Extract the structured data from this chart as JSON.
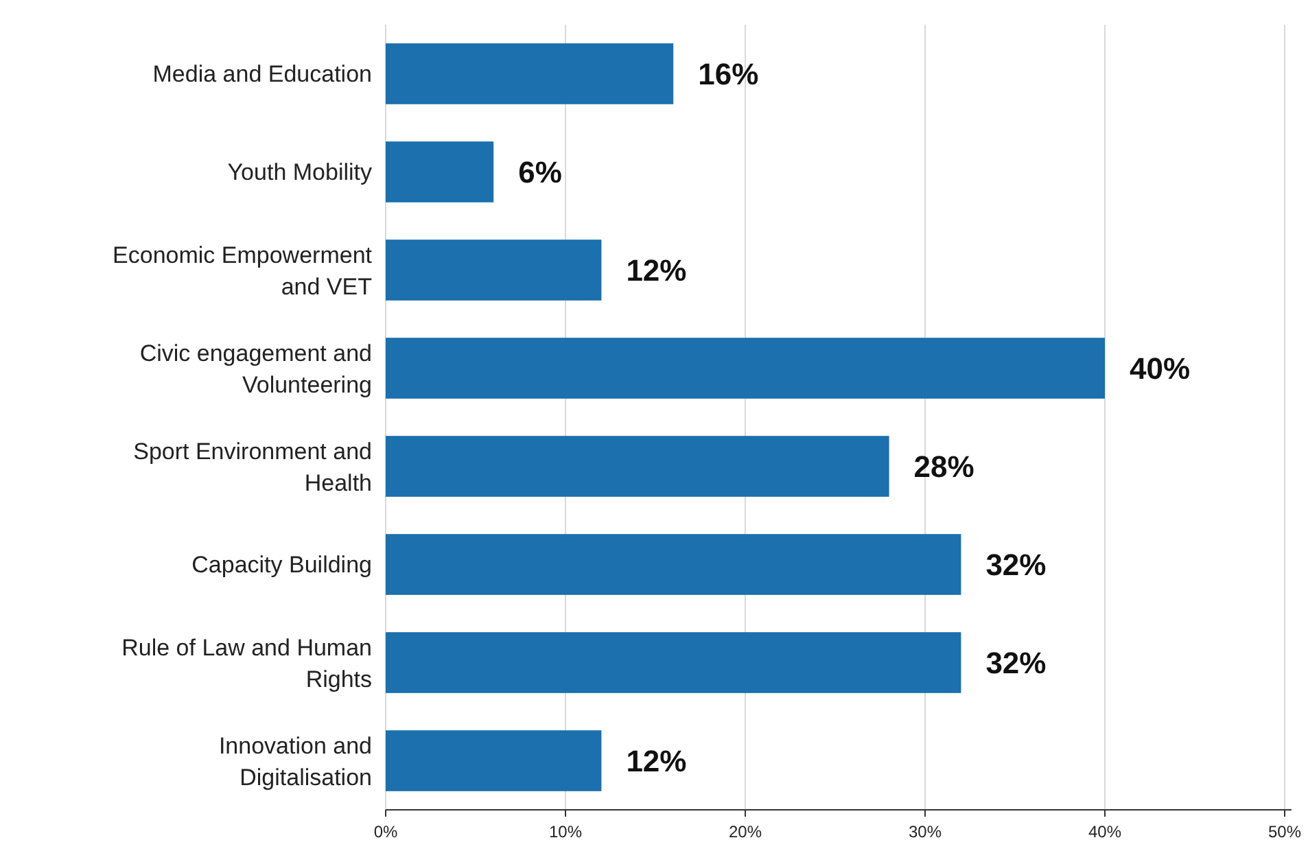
{
  "chart_data": {
    "type": "bar",
    "orientation": "horizontal",
    "categories": [
      "Media and Education",
      "Youth Mobility",
      "Economic Empowerment and VET",
      "Civic engagement and Volunteering",
      "Sport Environment and Health",
      "Capacity Building",
      "Rule of Law and Human Rights",
      "Innovation and Digitalisation"
    ],
    "values": [
      16,
      6,
      12,
      40,
      28,
      32,
      32,
      12
    ],
    "value_labels": [
      "16%",
      "6%",
      "12%",
      "40%",
      "28%",
      "32%",
      "32%",
      "12%"
    ],
    "color": "#1b70ad",
    "xlim": [
      0,
      50
    ],
    "xticks": [
      {
        "value": 0,
        "label": "0%"
      },
      {
        "value": 10,
        "label": "10%"
      },
      {
        "value": 20,
        "label": "20%"
      },
      {
        "value": 30,
        "label": "30%"
      },
      {
        "value": 40,
        "label": "40%"
      },
      {
        "value": 50,
        "label": "50%"
      }
    ],
    "grid": "x"
  }
}
